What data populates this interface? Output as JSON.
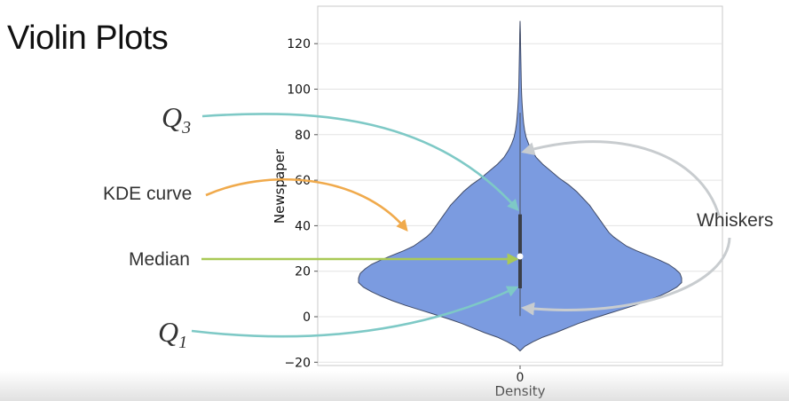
{
  "slide": {
    "title": "Violin Plots"
  },
  "annotations": {
    "q3": {
      "symbol": "Q",
      "subscript": "3"
    },
    "q1": {
      "symbol": "Q",
      "subscript": "1"
    },
    "kde": "KDE curve",
    "median": "Median",
    "whiskers": "Whiskers"
  },
  "colors": {
    "violin_fill": "#7b9be0",
    "violin_edge": "#3f4a66",
    "q_arrows": "#7ec9c6",
    "kde_arrow": "#f0aa4c",
    "median_arrow": "#a9c956",
    "whisker_arrows": "#c8cccf",
    "grid": "#e3e3e3"
  },
  "chart_data": {
    "type": "violin",
    "title": "",
    "xlabel": "Density",
    "ylabel": "Newspaper",
    "categories": [
      "0"
    ],
    "ylim": [
      -22,
      135
    ],
    "yticks": [
      -20,
      0,
      20,
      40,
      60,
      80,
      100,
      120
    ],
    "grid": true,
    "violin": {
      "median": 26.5,
      "q1": 12.5,
      "q3": 45,
      "whisker_low": 0.3,
      "whisker_high": 89.6,
      "kde_min": -15,
      "kde_max": 130,
      "kde_profile": [
        [
          -15,
          0.0
        ],
        [
          -13,
          0.03
        ],
        [
          -11,
          0.08
        ],
        [
          -9,
          0.14
        ],
        [
          -7,
          0.22
        ],
        [
          -5,
          0.29
        ],
        [
          -3,
          0.36
        ],
        [
          -1,
          0.44
        ],
        [
          1,
          0.53
        ],
        [
          3,
          0.62
        ],
        [
          5,
          0.71
        ],
        [
          7,
          0.79
        ],
        [
          9,
          0.86
        ],
        [
          11,
          0.92
        ],
        [
          13,
          0.97
        ],
        [
          15,
          1.0
        ],
        [
          17,
          1.0
        ],
        [
          19,
          0.99
        ],
        [
          21,
          0.96
        ],
        [
          23,
          0.92
        ],
        [
          25,
          0.86
        ],
        [
          27,
          0.79
        ],
        [
          29,
          0.72
        ],
        [
          31,
          0.66
        ],
        [
          33,
          0.62
        ],
        [
          35,
          0.58
        ],
        [
          37,
          0.55
        ],
        [
          40,
          0.52
        ],
        [
          43,
          0.49
        ],
        [
          46,
          0.46
        ],
        [
          49,
          0.43
        ],
        [
          52,
          0.39
        ],
        [
          55,
          0.35
        ],
        [
          58,
          0.3
        ],
        [
          61,
          0.24
        ],
        [
          64,
          0.19
        ],
        [
          67,
          0.14
        ],
        [
          70,
          0.1
        ],
        [
          73,
          0.073
        ],
        [
          76,
          0.052
        ],
        [
          79,
          0.037
        ],
        [
          82,
          0.028
        ],
        [
          85,
          0.022
        ],
        [
          88,
          0.018
        ],
        [
          91,
          0.015
        ],
        [
          94,
          0.012
        ],
        [
          97,
          0.01
        ],
        [
          100,
          0.008
        ],
        [
          104,
          0.007
        ],
        [
          108,
          0.006
        ],
        [
          112,
          0.005
        ],
        [
          116,
          0.004
        ],
        [
          120,
          0.003
        ],
        [
          124,
          0.002
        ],
        [
          127,
          0.001
        ],
        [
          130,
          0.0
        ]
      ]
    }
  }
}
